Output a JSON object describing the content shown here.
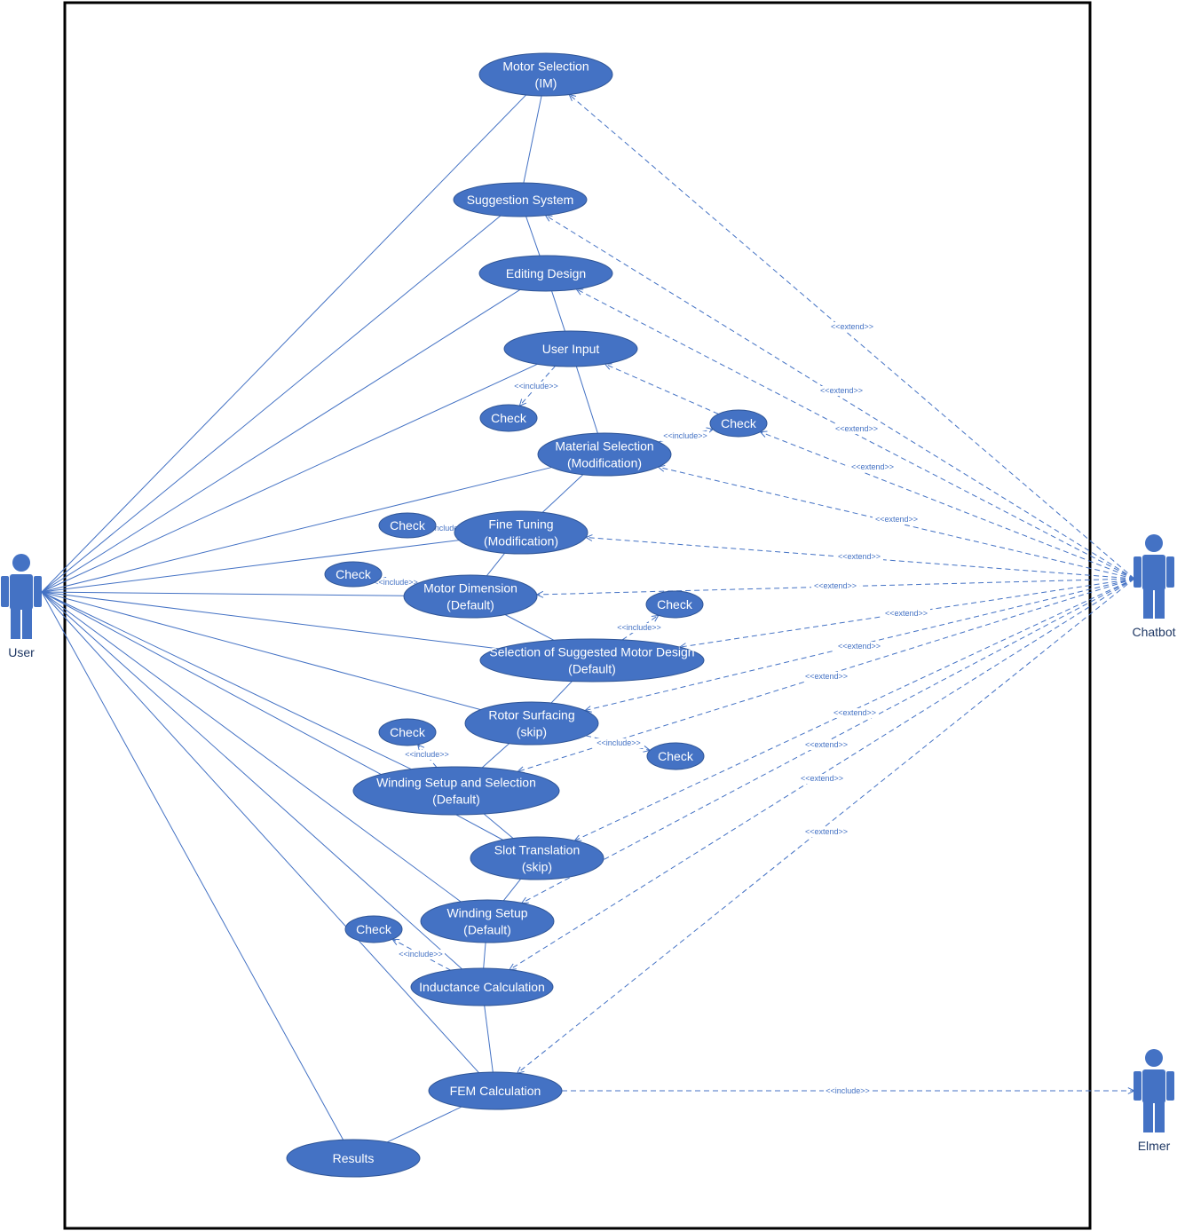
{
  "actors": {
    "user": "User",
    "chatbot": "Chatbot",
    "elmer": "Elmer"
  },
  "use_cases": [
    {
      "id": "motor-selection",
      "lines": [
        "Motor Selection",
        "(IM)"
      ]
    },
    {
      "id": "suggestion-system",
      "lines": [
        "Suggestion System"
      ]
    },
    {
      "id": "editing-design",
      "lines": [
        "Editing Design"
      ]
    },
    {
      "id": "user-input",
      "lines": [
        "User Input"
      ]
    },
    {
      "id": "check-1",
      "lines": [
        "Check"
      ]
    },
    {
      "id": "check-2",
      "lines": [
        "Check"
      ]
    },
    {
      "id": "material-selection",
      "lines": [
        "Material Selection",
        "(Modification)"
      ]
    },
    {
      "id": "check-3",
      "lines": [
        "Check"
      ]
    },
    {
      "id": "fine-tuning",
      "lines": [
        "Fine Tuning",
        "(Modification)"
      ]
    },
    {
      "id": "check-4",
      "lines": [
        "Check"
      ]
    },
    {
      "id": "motor-dimension",
      "lines": [
        "Motor Dimension",
        "(Default)"
      ]
    },
    {
      "id": "check-5",
      "lines": [
        "Check"
      ]
    },
    {
      "id": "selection-suggested",
      "lines": [
        "Selection of Suggested Motor Design",
        "(Default)"
      ]
    },
    {
      "id": "rotor-surfacing",
      "lines": [
        "Rotor Surfacing",
        "(skip)"
      ]
    },
    {
      "id": "check-6",
      "lines": [
        "Check"
      ]
    },
    {
      "id": "check-7",
      "lines": [
        "Check"
      ]
    },
    {
      "id": "winding-setup-selection",
      "lines": [
        "Winding Setup and Selection",
        "(Default)"
      ]
    },
    {
      "id": "slot-translation",
      "lines": [
        "Slot Translation",
        "(skip)"
      ]
    },
    {
      "id": "winding-setup",
      "lines": [
        "Winding Setup",
        "(Default)"
      ]
    },
    {
      "id": "check-8",
      "lines": [
        "Check"
      ]
    },
    {
      "id": "inductance-calculation",
      "lines": [
        "Inductance Calculation"
      ]
    },
    {
      "id": "fem-calculation",
      "lines": [
        "FEM Calculation"
      ]
    },
    {
      "id": "results",
      "lines": [
        "Results"
      ]
    }
  ],
  "stereotypes": {
    "extend": "<<extend>>",
    "include": "<<include>>"
  },
  "colors": {
    "use_case_fill": "#4472c4",
    "line": "#4472c4",
    "boundary": "#000000"
  }
}
